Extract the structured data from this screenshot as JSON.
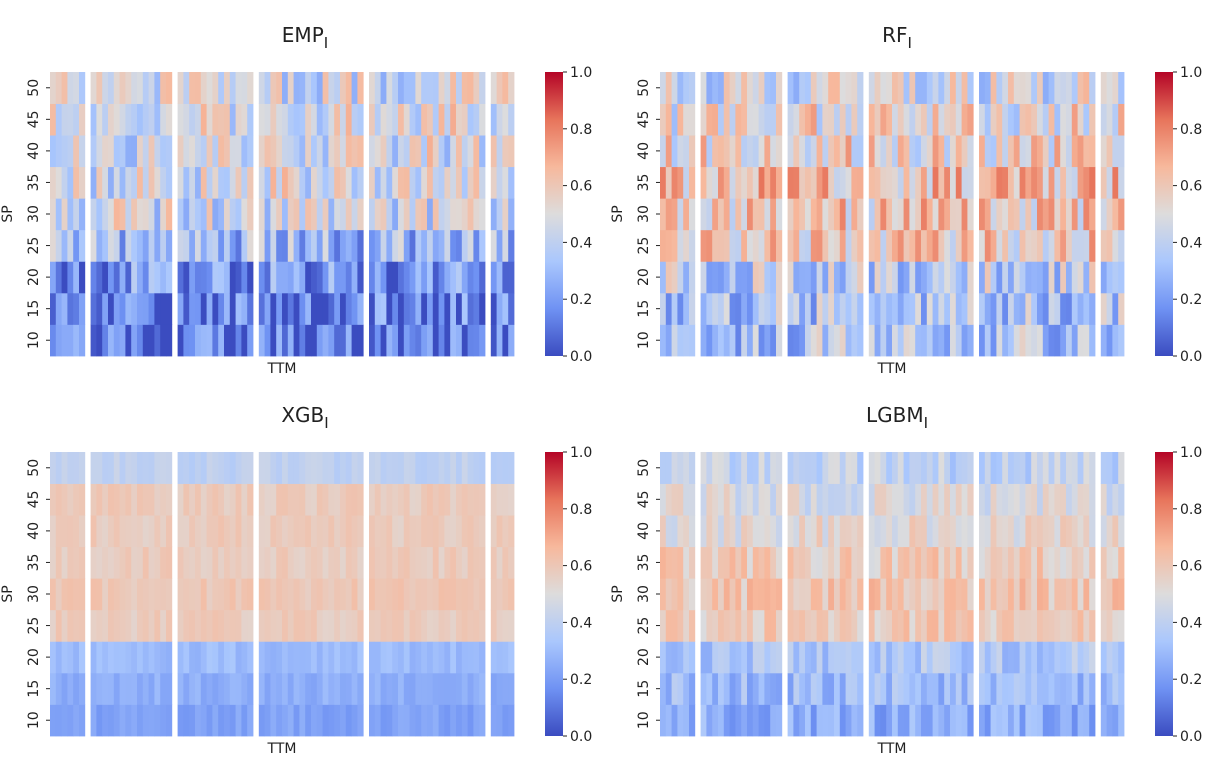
{
  "figure": {
    "panels": [
      {
        "title_main": "EMP",
        "title_sub": "I",
        "model_key": "emp"
      },
      {
        "title_main": "RF",
        "title_sub": "I",
        "model_key": "rf"
      },
      {
        "title_main": "XGB",
        "title_sub": "I",
        "model_key": "xgb"
      },
      {
        "title_main": "LGBM",
        "title_sub": "I",
        "model_key": "lgbm"
      }
    ]
  },
  "chart_data": {
    "type": "heatmap",
    "xlabel": "TTM",
    "ylabel": "SP",
    "y_categories": [
      10,
      15,
      20,
      25,
      30,
      35,
      40,
      45,
      50
    ],
    "y_tick_labels": [
      "10",
      "15",
      "20",
      "25",
      "30",
      "35",
      "40",
      "45",
      "50"
    ],
    "colorbar": {
      "min": 0.0,
      "max": 1.0,
      "ticks": [
        0.0,
        0.2,
        0.4,
        0.6,
        0.8,
        1.0
      ],
      "tick_labels": [
        "0.0",
        "0.2",
        "0.4",
        "0.6",
        "0.8",
        "1.0"
      ],
      "colormap": "coolwarm",
      "colors": [
        "#3b4cc0",
        "#6f92f3",
        "#aac7fd",
        "#dddcdc",
        "#f7b89c",
        "#e7745b",
        "#b40426"
      ]
    },
    "column_groups": [
      6,
      14,
      13,
      18,
      20,
      4
    ],
    "group_gaps": [
      1,
      1,
      1,
      1,
      1
    ],
    "approx_row_means": {
      "emp": [
        0.08,
        0.13,
        0.17,
        0.3,
        0.45,
        0.47,
        0.47,
        0.48,
        0.45
      ],
      "rf": [
        0.35,
        0.35,
        0.4,
        0.58,
        0.6,
        0.62,
        0.55,
        0.52,
        0.46
      ],
      "xgb": [
        0.22,
        0.26,
        0.3,
        0.58,
        0.6,
        0.58,
        0.58,
        0.58,
        0.4
      ],
      "lgbm": [
        0.25,
        0.3,
        0.35,
        0.58,
        0.6,
        0.58,
        0.52,
        0.48,
        0.4
      ]
    }
  }
}
